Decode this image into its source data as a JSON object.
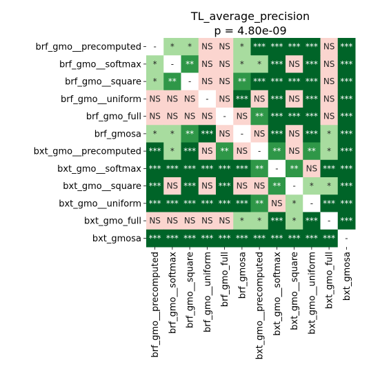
{
  "chart_data": {
    "type": "heatmap",
    "title": "TL_average_precision",
    "subtitle": "p = 4.80e-09",
    "labels": [
      "brf_gmo__precomputed",
      "brf_gmo__softmax",
      "brf_gmo__square",
      "brf_gmo__uniform",
      "brf_gmo_full",
      "brf_gmosa",
      "bxt_gmo__precomputed",
      "bxt_gmo__softmax",
      "bxt_gmo__square",
      "bxt_gmo__uniform",
      "bxt_gmo_full",
      "bxt_gmosa"
    ],
    "matrix": [
      [
        "-",
        "*",
        "*",
        "NS",
        "NS",
        "*",
        "***",
        "***",
        "***",
        "***",
        "NS",
        "***"
      ],
      [
        "*",
        "-",
        "**",
        "NS",
        "NS",
        "*",
        "*",
        "***",
        "NS",
        "***",
        "NS",
        "***"
      ],
      [
        "*",
        "**",
        "-",
        "NS",
        "NS",
        "**",
        "***",
        "***",
        "***",
        "***",
        "NS",
        "***"
      ],
      [
        "NS",
        "NS",
        "NS",
        "-",
        "NS",
        "***",
        "NS",
        "***",
        "NS",
        "***",
        "NS",
        "***"
      ],
      [
        "NS",
        "NS",
        "NS",
        "NS",
        "-",
        "NS",
        "**",
        "***",
        "***",
        "***",
        "NS",
        "***"
      ],
      [
        "*",
        "*",
        "**",
        "***",
        "NS",
        "-",
        "NS",
        "***",
        "NS",
        "***",
        "*",
        "***"
      ],
      [
        "***",
        "*",
        "***",
        "NS",
        "**",
        "NS",
        "-",
        "**",
        "NS",
        "**",
        "*",
        "***"
      ],
      [
        "***",
        "***",
        "***",
        "***",
        "***",
        "***",
        "**",
        "-",
        "**",
        "NS",
        "***",
        "***"
      ],
      [
        "***",
        "NS",
        "***",
        "NS",
        "***",
        "NS",
        "NS",
        "**",
        "-",
        "*",
        "*",
        "***"
      ],
      [
        "***",
        "***",
        "***",
        "***",
        "***",
        "***",
        "**",
        "NS",
        "*",
        "-",
        "***",
        "***"
      ],
      [
        "NS",
        "NS",
        "NS",
        "NS",
        "NS",
        "*",
        "*",
        "***",
        "*",
        "***",
        "-",
        "***"
      ],
      [
        "***",
        "***",
        "***",
        "***",
        "***",
        "***",
        "***",
        "***",
        "***",
        "***",
        "***",
        "-"
      ]
    ],
    "colors": {
      "NS": "#fbd5cf",
      "*": "#a8dc9f",
      "**": "#2f9748",
      "***": "#006428",
      "-": "#ffffff"
    },
    "text_colors": {
      "NS": "#262626",
      "*": "#262626",
      "**": "#ffffff",
      "***": "#ffffff",
      "-": "#262626"
    }
  }
}
